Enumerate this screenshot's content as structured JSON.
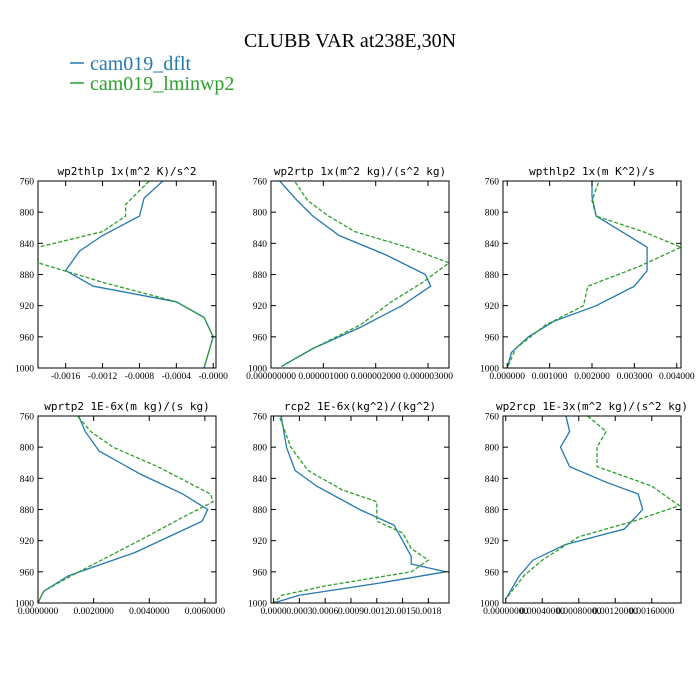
{
  "title": "CLUBB VAR at238E,30N",
  "colors": {
    "dflt": "#2479b0",
    "lminwp2": "#2ca02c"
  },
  "legend": [
    {
      "label": "cam019_dflt",
      "color": "#2479b0"
    },
    {
      "label": "cam019_lminwp2",
      "color": "#2ca02c"
    }
  ],
  "chart_data": [
    {
      "type": "line",
      "title": "wp2thlp  1x(m^2 K)/s^2",
      "xlim": [
        -0.0019,
        3e-05
      ],
      "ylim": [
        760,
        1000
      ],
      "xticks": [
        -0.0016,
        -0.0012,
        -0.0008,
        -0.0004,
        0
      ],
      "xtick_labels": [
        "-0.0016",
        "-0.0012",
        "-0.0008",
        "-0.0004",
        "-0.0000"
      ],
      "yticks": [
        760,
        800,
        840,
        880,
        920,
        960,
        1000
      ],
      "series": [
        {
          "name": "cam019_dflt",
          "x": [
            -0.0005,
            -0.00075,
            -0.0008,
            -0.0012,
            -0.00145,
            -0.0016,
            -0.0013,
            -0.0004,
            -0.0001,
            0.0,
            -5e-05,
            -0.0001
          ],
          "y": [
            755,
            782,
            805,
            830,
            850,
            875,
            895,
            915,
            935,
            960,
            980,
            1000
          ]
        },
        {
          "name": "cam019_lminwp2",
          "x": [
            -0.00065,
            -0.00095,
            -0.00095,
            -0.0012,
            -0.0019,
            -0.0019,
            -0.0012,
            -0.0004,
            -0.0001,
            0.0,
            -5e-05,
            -0.0001
          ],
          "y": [
            755,
            790,
            805,
            825,
            845,
            865,
            890,
            915,
            935,
            960,
            980,
            1000
          ]
        }
      ]
    },
    {
      "type": "line",
      "title": "wp2rtp  1x(m^2 kg)/(s^2 kg)",
      "xlim": [
        0,
        3.4e-06
      ],
      "ylim": [
        760,
        1000
      ],
      "xticks": [
        0,
        1e-06,
        2e-06,
        3e-06
      ],
      "xtick_labels": [
        "0.000000000",
        "0.000001000",
        "0.000002000",
        "0.000003000"
      ],
      "yticks": [
        760,
        800,
        840,
        880,
        920,
        960,
        1000
      ],
      "series": [
        {
          "name": "cam019_dflt",
          "x": [
            1e-07,
            5e-07,
            8e-07,
            1.3e-06,
            2.2e-06,
            2.95e-06,
            3.05e-06,
            2.5e-06,
            1.7e-06,
            8e-07,
            2e-07
          ],
          "y": [
            755,
            785,
            805,
            830,
            855,
            880,
            895,
            920,
            948,
            975,
            998
          ]
        },
        {
          "name": "cam019_lminwp2",
          "x": [
            4e-07,
            7e-07,
            1.1e-06,
            1.6e-06,
            2.6e-06,
            3.4e-06,
            2.9e-06,
            2.3e-06,
            1.7e-06,
            8e-07,
            2e-07
          ],
          "y": [
            755,
            785,
            805,
            825,
            845,
            865,
            890,
            915,
            945,
            975,
            998
          ]
        }
      ]
    },
    {
      "type": "line",
      "title": "wpthlp2  1x(m K^2)/s",
      "xlim": [
        -0.0001,
        0.0041
      ],
      "ylim": [
        760,
        1000
      ],
      "xticks": [
        0,
        0.001,
        0.002,
        0.003,
        0.004
      ],
      "xtick_labels": [
        "0.000000",
        "0.001000",
        "0.002000",
        "0.003000",
        "0.004000"
      ],
      "yticks": [
        760,
        800,
        840,
        880,
        920,
        960,
        1000
      ],
      "series": [
        {
          "name": "cam019_dflt",
          "x": [
            0.002,
            0.002,
            0.0021,
            0.0033,
            0.0033,
            0.003,
            0.0021,
            0.0011,
            0.0005,
            0.0001,
            0.0
          ],
          "y": [
            755,
            780,
            805,
            845,
            875,
            895,
            920,
            940,
            960,
            980,
            1000
          ]
        },
        {
          "name": "cam019_lminwp2",
          "x": [
            0.0022,
            0.002,
            0.0021,
            0.0032,
            0.0041,
            0.0031,
            0.0019,
            0.0018,
            0.0009,
            0.0002,
            0.0
          ],
          "y": [
            755,
            785,
            805,
            825,
            845,
            870,
            895,
            920,
            945,
            975,
            1000
          ]
        }
      ]
    },
    {
      "type": "line",
      "title": "wprtp2  1E-6x(m kg)/(s kg)",
      "xlim": [
        0,
        0.0064
      ],
      "ylim": [
        760,
        1000
      ],
      "xticks": [
        0,
        0.002,
        0.004,
        0.006
      ],
      "xtick_labels": [
        "0.0000000",
        "0.0020000",
        "0.0040000",
        "0.0060000"
      ],
      "yticks": [
        760,
        800,
        840,
        880,
        920,
        960,
        1000
      ],
      "series": [
        {
          "name": "cam019_dflt",
          "x": [
            0.0014,
            0.0017,
            0.0022,
            0.0037,
            0.0052,
            0.0061,
            0.0059,
            0.0035,
            0.0011,
            0.0002,
            0.0
          ],
          "y": [
            755,
            780,
            805,
            835,
            860,
            880,
            895,
            935,
            965,
            985,
            1000
          ]
        },
        {
          "name": "cam019_lminwp2",
          "x": [
            0.0013,
            0.0019,
            0.0027,
            0.0043,
            0.0062,
            0.0063,
            0.0052,
            0.0039,
            0.0012,
            0.0002,
            0.0
          ],
          "y": [
            755,
            780,
            800,
            825,
            860,
            870,
            890,
            915,
            965,
            985,
            1000
          ]
        }
      ]
    },
    {
      "type": "line",
      "title": "rcp2  1E-6x(kg^2)/(kg^2)",
      "xlim": [
        -3e-05,
        0.00204
      ],
      "ylim": [
        760,
        1000
      ],
      "xticks": [
        0,
        0.0003,
        0.0006,
        0.0009,
        0.0012,
        0.0015,
        0.0018
      ],
      "xtick_labels": [
        "0.0000",
        "0.0003",
        "0.0006",
        "0.0009",
        "0.0012",
        "0.0015",
        "0.0018"
      ],
      "yticks": [
        760,
        800,
        840,
        880,
        920,
        960,
        1000
      ],
      "series": [
        {
          "name": "cam019_dflt",
          "x": [
            8e-05,
            0.00015,
            0.00025,
            0.0005,
            0.001,
            0.0014,
            0.0015,
            0.0016,
            0.0016,
            0.002,
            0.0012,
            0.0003,
            0.0
          ],
          "y": [
            755,
            800,
            830,
            850,
            880,
            900,
            920,
            940,
            950,
            960,
            975,
            990,
            1000
          ]
        },
        {
          "name": "cam019_lminwp2",
          "x": [
            5e-05,
            0.0002,
            0.0004,
            0.0008,
            0.0012,
            0.0012,
            0.0015,
            0.0016,
            0.0018,
            0.0016,
            0.0006,
            0.0001,
            0.0
          ],
          "y": [
            755,
            800,
            830,
            855,
            870,
            895,
            910,
            930,
            945,
            960,
            978,
            990,
            1000
          ]
        }
      ]
    },
    {
      "type": "line",
      "title": "wp2rcp  1E-3x(m^2 kg)/(s^2 kg)",
      "xlim": [
        -3e-05,
        0.00192
      ],
      "ylim": [
        760,
        1000
      ],
      "xticks": [
        0,
        0.0004,
        0.0008,
        0.0012,
        0.0016
      ],
      "xtick_labels": [
        "0.00000000",
        "0.00040000",
        "0.00080000",
        "0.00120000",
        "0.00160000"
      ],
      "yticks": [
        760,
        800,
        840,
        880,
        920,
        960,
        1000
      ],
      "series": [
        {
          "name": "cam019_dflt",
          "x": [
            0.00065,
            0.0007,
            0.0006,
            0.0007,
            0.0011,
            0.00145,
            0.0015,
            0.0013,
            0.00065,
            0.0003,
            0.00015,
            0.0
          ],
          "y": [
            755,
            780,
            800,
            825,
            845,
            860,
            880,
            905,
            925,
            945,
            965,
            995
          ]
        },
        {
          "name": "cam019_lminwp2",
          "x": [
            0.00085,
            0.0011,
            0.001,
            0.001,
            0.0016,
            0.0019,
            0.0014,
            0.0008,
            0.0004,
            0.0002,
            0.0
          ],
          "y": [
            755,
            780,
            800,
            825,
            850,
            875,
            895,
            915,
            945,
            965,
            995
          ]
        }
      ]
    }
  ]
}
